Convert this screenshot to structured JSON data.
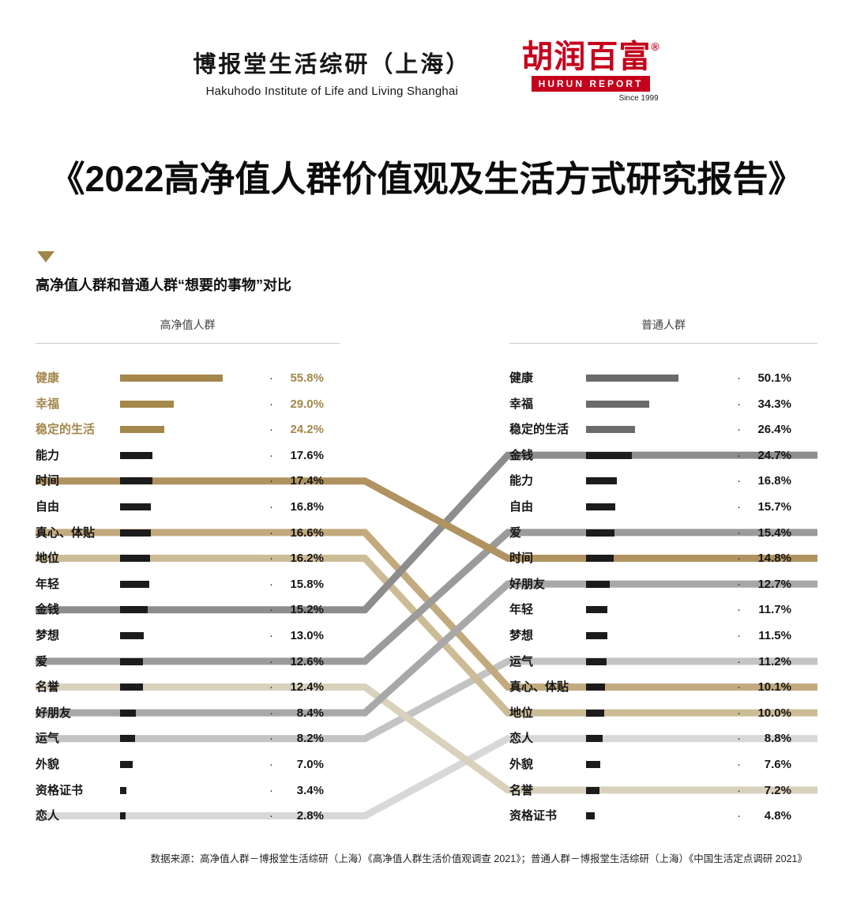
{
  "header": {
    "hakuhodo": {
      "chinese": "博报堂生活综研（上海）",
      "english": "Hakuhodo Institute of Life and Living Shanghai"
    },
    "hurun": {
      "name": "胡润百富",
      "registered": "®",
      "banner": "HURUN REPORT",
      "since": "Since 1999",
      "color": "#c5001c"
    }
  },
  "title": "《2022高净值人群价值观及生活方式研究报告》",
  "section_subtitle": "高净值人群和普通人群“想要的事物”对比",
  "footer": "数据来源：高净值人群－博报堂生活综研（上海）《高净值人群生活价值观调查 2021》；普通人群－博报堂生活综研（上海）《中国生活定点调研 2021》",
  "chart_data": {
    "type": "bar",
    "subtype": "paired-ranking-comparison-with-slope-links",
    "unit": "%",
    "separator_dot": "·",
    "colors": {
      "gold": "#a3874b",
      "dark": "#1c1c1c",
      "gray": "#6b6b6b",
      "accent_gold": "#a08648"
    },
    "left": {
      "title": "高净值人群",
      "items": [
        {
          "label": "健康",
          "value": 55.8,
          "style": "gold"
        },
        {
          "label": "幸福",
          "value": 29.0,
          "style": "gold"
        },
        {
          "label": "稳定的生活",
          "value": 24.2,
          "style": "gold"
        },
        {
          "label": "能力",
          "value": 17.6,
          "style": "dark"
        },
        {
          "label": "时间",
          "value": 17.4,
          "style": "dark"
        },
        {
          "label": "自由",
          "value": 16.8,
          "style": "dark"
        },
        {
          "label": "真心、体贴",
          "value": 16.6,
          "style": "dark"
        },
        {
          "label": "地位",
          "value": 16.2,
          "style": "dark"
        },
        {
          "label": "年轻",
          "value": 15.8,
          "style": "dark"
        },
        {
          "label": "金钱",
          "value": 15.2,
          "style": "dark"
        },
        {
          "label": "梦想",
          "value": 13.0,
          "style": "dark"
        },
        {
          "label": "爱",
          "value": 12.6,
          "style": "dark"
        },
        {
          "label": "名誉",
          "value": 12.4,
          "style": "dark"
        },
        {
          "label": "好朋友",
          "value": 8.4,
          "style": "dark"
        },
        {
          "label": "运气",
          "value": 8.2,
          "style": "dark"
        },
        {
          "label": "外貌",
          "value": 7.0,
          "style": "dark"
        },
        {
          "label": "资格证书",
          "value": 3.4,
          "style": "dark"
        },
        {
          "label": "恋人",
          "value": 2.8,
          "style": "dark"
        }
      ]
    },
    "right": {
      "title": "普通人群",
      "items": [
        {
          "label": "健康",
          "value": 50.1,
          "style": "gray"
        },
        {
          "label": "幸福",
          "value": 34.3,
          "style": "gray"
        },
        {
          "label": "稳定的生活",
          "value": 26.4,
          "style": "gray"
        },
        {
          "label": "金钱",
          "value": 24.7,
          "style": "dark"
        },
        {
          "label": "能力",
          "value": 16.8,
          "style": "dark"
        },
        {
          "label": "自由",
          "value": 15.7,
          "style": "dark"
        },
        {
          "label": "爱",
          "value": 15.4,
          "style": "dark"
        },
        {
          "label": "时间",
          "value": 14.8,
          "style": "dark"
        },
        {
          "label": "好朋友",
          "value": 12.7,
          "style": "dark"
        },
        {
          "label": "年轻",
          "value": 11.7,
          "style": "dark"
        },
        {
          "label": "梦想",
          "value": 11.5,
          "style": "dark"
        },
        {
          "label": "运气",
          "value": 11.2,
          "style": "dark"
        },
        {
          "label": "真心、体贴",
          "value": 10.1,
          "style": "dark"
        },
        {
          "label": "地位",
          "value": 10.0,
          "style": "dark"
        },
        {
          "label": "恋人",
          "value": 8.8,
          "style": "dark"
        },
        {
          "label": "外貌",
          "value": 7.6,
          "style": "dark"
        },
        {
          "label": "名誉",
          "value": 7.2,
          "style": "dark"
        },
        {
          "label": "资格证书",
          "value": 4.8,
          "style": "dark"
        }
      ]
    },
    "links": [
      {
        "label": "恋人",
        "color": "#d8d8d8"
      },
      {
        "label": "运气",
        "color": "#c3c3c3"
      },
      {
        "label": "名誉",
        "color": "#d9d1bc"
      },
      {
        "label": "地位",
        "color": "#ccbc96"
      },
      {
        "label": "真心、体贴",
        "color": "#c2aa7e"
      },
      {
        "label": "好朋友",
        "color": "#a8a8a8"
      },
      {
        "label": "爱",
        "color": "#9b9b9b"
      },
      {
        "label": "金钱",
        "color": "#8d8d8d"
      },
      {
        "label": "时间",
        "color": "#b09360"
      }
    ]
  }
}
